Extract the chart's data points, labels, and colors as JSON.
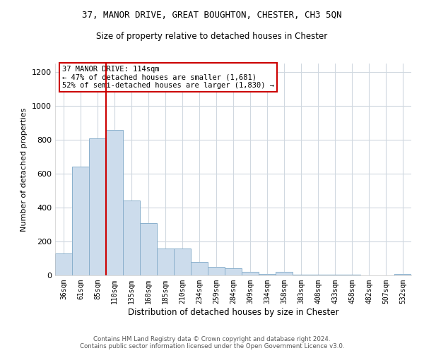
{
  "title_line1": "37, MANOR DRIVE, GREAT BOUGHTON, CHESTER, CH3 5QN",
  "title_line2": "Size of property relative to detached houses in Chester",
  "xlabel": "Distribution of detached houses by size in Chester",
  "ylabel": "Number of detached properties",
  "categories": [
    "36sqm",
    "61sqm",
    "85sqm",
    "110sqm",
    "135sqm",
    "160sqm",
    "185sqm",
    "210sqm",
    "234sqm",
    "259sqm",
    "284sqm",
    "309sqm",
    "334sqm",
    "358sqm",
    "383sqm",
    "408sqm",
    "433sqm",
    "458sqm",
    "482sqm",
    "507sqm",
    "532sqm"
  ],
  "values": [
    130,
    640,
    810,
    860,
    440,
    310,
    160,
    160,
    80,
    50,
    40,
    20,
    10,
    20,
    5,
    5,
    5,
    5,
    0,
    0,
    10
  ],
  "bar_color": "#ccdcec",
  "bar_edge_color": "#8ab0cc",
  "vline_x_idx": 3,
  "vline_color": "#cc0000",
  "ylim": [
    0,
    1250
  ],
  "yticks": [
    0,
    200,
    400,
    600,
    800,
    1000,
    1200
  ],
  "annotation_text": "37 MANOR DRIVE: 114sqm\n← 47% of detached houses are smaller (1,681)\n52% of semi-detached houses are larger (1,830) →",
  "footer_line1": "Contains HM Land Registry data © Crown copyright and database right 2024.",
  "footer_line2": "Contains public sector information licensed under the Open Government Licence v3.0.",
  "background_color": "#ffffff",
  "grid_color": "#d0d8e0"
}
